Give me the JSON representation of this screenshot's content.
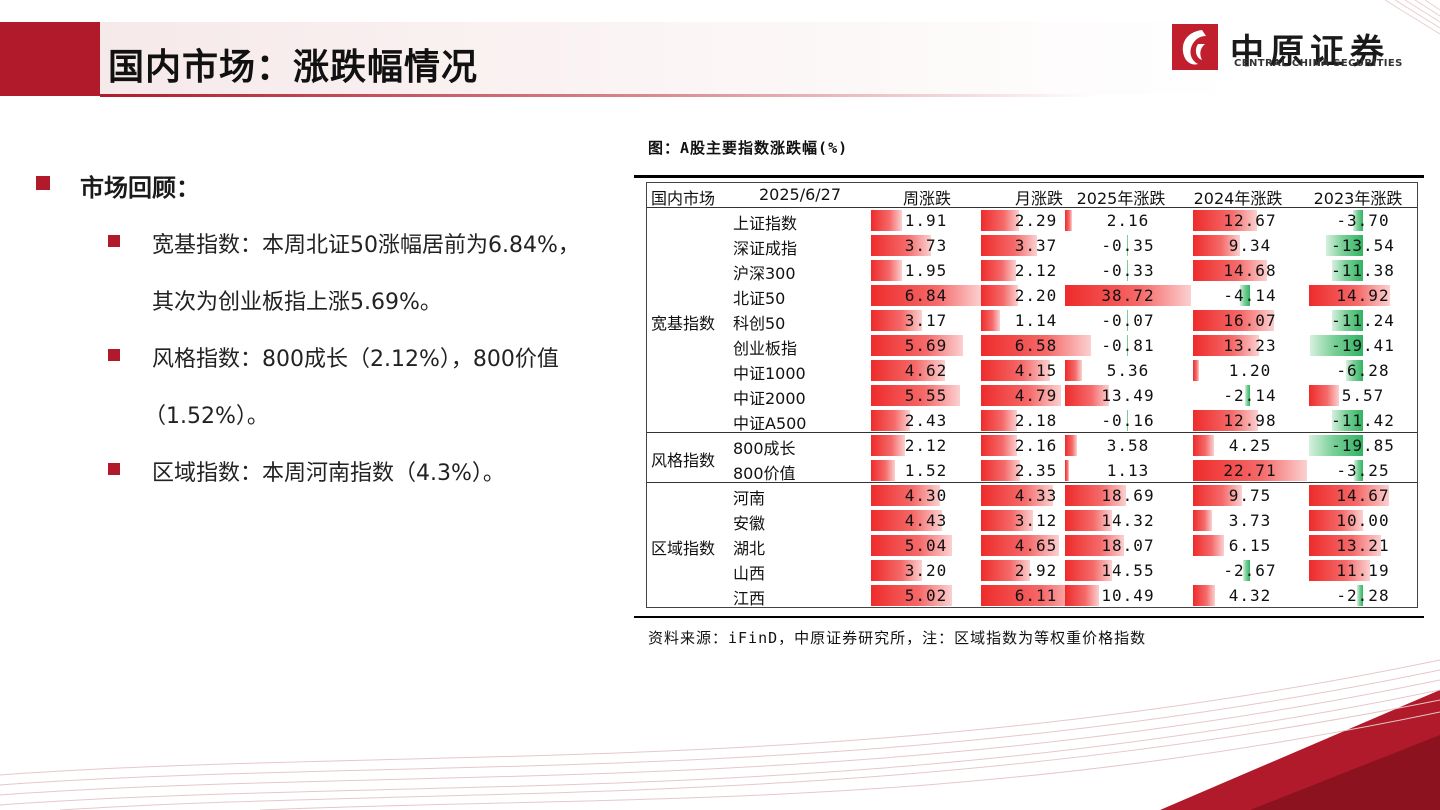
{
  "header": {
    "title": "国内市场：涨跌幅情况"
  },
  "logo": {
    "cn": "中原证券",
    "en": "CENTRAL CHINA SECURITIES"
  },
  "colors": {
    "accent": "#b01a2a",
    "up": "#ee2b2b",
    "down": "#31b463"
  },
  "left": {
    "heading": "市场回顾：",
    "bullets": [
      {
        "line1": "宽基指数：本周北证50涨幅居前为6.84%，",
        "line2": "其次为创业板指上涨5.69%。"
      },
      {
        "line1": "风格指数：800成长（2.12%），800价值",
        "line2": "（1.52%）。"
      },
      {
        "line1": "区域指数：本周河南指数（4.3%）。"
      }
    ]
  },
  "table": {
    "caption": "图：A股主要指数涨跌幅(%)",
    "head_market": "国内市场",
    "head_date": "2025/6/27",
    "columns": [
      "周涨跌",
      "月涨跌",
      "2025年涨跌",
      "2024年涨跌",
      "2023年涨跌"
    ],
    "groups": [
      {
        "name": "宽基指数",
        "rows": [
          {
            "name": "上证指数",
            "values": [
              "1.91",
              "2.29",
              "2.16",
              "12.67",
              "-3.70"
            ]
          },
          {
            "name": "深证成指",
            "values": [
              "3.73",
              "3.37",
              "-0.35",
              "9.34",
              "-13.54"
            ]
          },
          {
            "name": "沪深300",
            "values": [
              "1.95",
              "2.12",
              "-0.33",
              "14.68",
              "-11.38"
            ]
          },
          {
            "name": "北证50",
            "values": [
              "6.84",
              "2.20",
              "38.72",
              "-4.14",
              "14.92"
            ]
          },
          {
            "name": "科创50",
            "values": [
              "3.17",
              "1.14",
              "-0.07",
              "16.07",
              "-11.24"
            ]
          },
          {
            "name": "创业板指",
            "values": [
              "5.69",
              "6.58",
              "-0.81",
              "13.23",
              "-19.41"
            ]
          },
          {
            "name": "中证1000",
            "values": [
              "4.62",
              "4.15",
              "5.36",
              "1.20",
              "-6.28"
            ]
          },
          {
            "name": "中证2000",
            "values": [
              "5.55",
              "4.79",
              "13.49",
              "-2.14",
              "5.57"
            ]
          },
          {
            "name": "中证A500",
            "values": [
              "2.43",
              "2.18",
              "-0.16",
              "12.98",
              "-11.42"
            ]
          }
        ]
      },
      {
        "name": "风格指数",
        "rows": [
          {
            "name": "800成长",
            "values": [
              "2.12",
              "2.16",
              "3.58",
              "4.25",
              "-19.85"
            ]
          },
          {
            "name": "800价值",
            "values": [
              "1.52",
              "2.35",
              "1.13",
              "22.71",
              "-3.25"
            ]
          }
        ]
      },
      {
        "name": "区域指数",
        "rows": [
          {
            "name": "河南",
            "values": [
              "4.30",
              "4.33",
              "18.69",
              "9.75",
              "14.67"
            ]
          },
          {
            "name": "安徽",
            "values": [
              "4.43",
              "3.12",
              "14.32",
              "3.73",
              "10.00"
            ]
          },
          {
            "name": "湖北",
            "values": [
              "5.04",
              "4.65",
              "18.07",
              "6.15",
              "13.21"
            ]
          },
          {
            "name": "山西",
            "values": [
              "3.20",
              "2.92",
              "14.55",
              "-2.67",
              "11.19"
            ]
          },
          {
            "name": "江西",
            "values": [
              "5.02",
              "6.11",
              "10.49",
              "4.32",
              "-2.28"
            ]
          }
        ]
      }
    ],
    "note": "资料来源：iFinD，中原证券研究所，注：区域指数为等权重价格指数"
  }
}
